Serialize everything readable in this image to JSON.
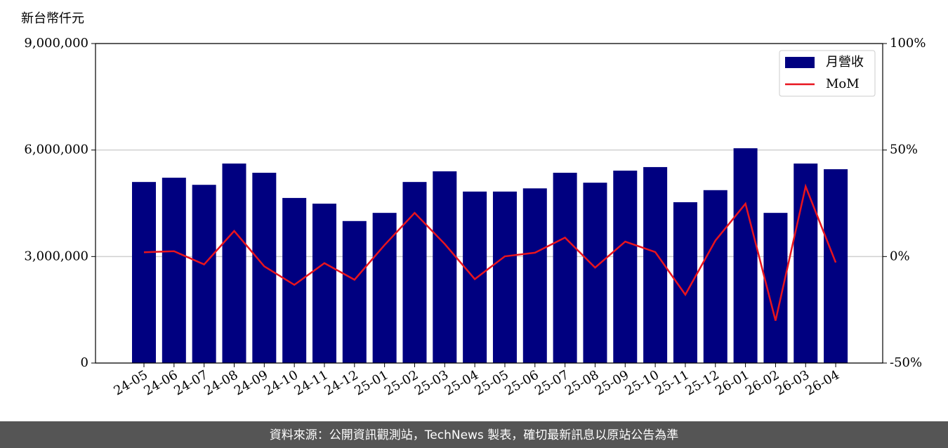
{
  "chart_data": {
    "type": "bar",
    "y_label": "新台幣仟元",
    "categories": [
      "24-05",
      "24-06",
      "24-07",
      "24-08",
      "24-09",
      "24-10",
      "24-11",
      "24-12",
      "25-01",
      "25-02",
      "25-03",
      "25-04",
      "25-05",
      "25-06",
      "25-07",
      "25-08",
      "25-09",
      "25-10",
      "25-11",
      "25-12",
      "26-01",
      "26-02",
      "26-03",
      "26-04"
    ],
    "series": [
      {
        "name": "月營收",
        "type": "bar",
        "color": "#000080",
        "values": [
          5100000,
          5220000,
          5020000,
          5620000,
          5360000,
          4650000,
          4490000,
          4000000,
          4230000,
          5100000,
          5400000,
          4830000,
          4830000,
          4920000,
          5360000,
          5080000,
          5420000,
          5520000,
          4530000,
          4870000,
          6050000,
          4230000,
          5620000,
          5460000
        ]
      },
      {
        "name": "MoM",
        "type": "line",
        "axis": "y2",
        "color": "#e8141e",
        "values": [
          2,
          2.5,
          -3.7,
          12,
          -4.6,
          -13.3,
          -3.1,
          -10.9,
          5.4,
          20.5,
          5.9,
          -10.6,
          0.1,
          1.8,
          8.9,
          -5.2,
          7,
          2.1,
          -17.9,
          7.5,
          24.8,
          -30.1,
          32.9,
          -2.8
        ]
      }
    ],
    "ylim": [
      0,
      9000000
    ],
    "yticks": [
      0,
      {
        "value": 3000000,
        "label": "3,000,000"
      },
      {
        "value": 6000000,
        "label": "6,000,000"
      },
      {
        "value": 9000000,
        "label": "9,000,000"
      }
    ],
    "y2lim": [
      -50,
      100
    ],
    "y2ticks": [
      {
        "value": -50,
        "label": "-50%"
      },
      {
        "value": 0,
        "label": "0%"
      },
      {
        "value": 50,
        "label": "50%"
      },
      {
        "value": 100,
        "label": "100%"
      }
    ],
    "grid": true,
    "legend": "upper right"
  },
  "footer": "資料來源：公開資訊觀測站，TechNews 製表，確切最新訊息以原站公告為準"
}
